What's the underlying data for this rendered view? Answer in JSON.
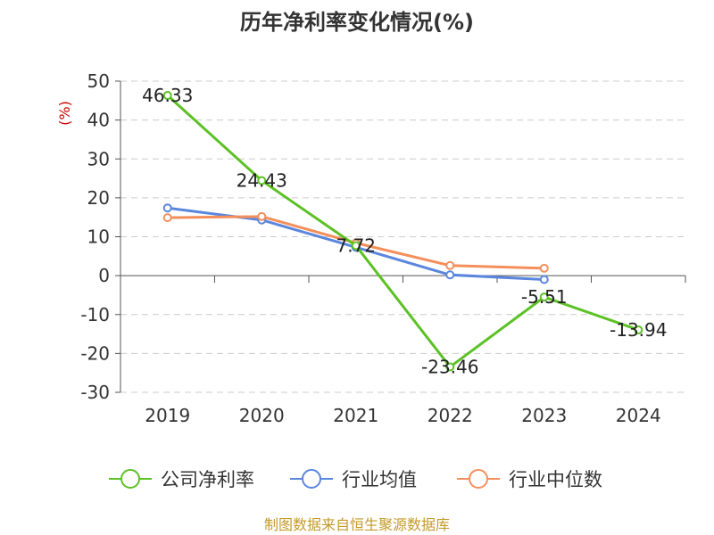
{
  "source_text": "制图数据来自恒生聚源数据库",
  "chart_data": {
    "type": "line",
    "title": "历年净利率变化情况(%)",
    "ylabel": "(%)",
    "xlabel": "",
    "categories": [
      "2019",
      "2020",
      "2021",
      "2022",
      "2023",
      "2024"
    ],
    "ylim": [
      -30,
      50
    ],
    "yticks": [
      "50",
      "40",
      "30",
      "20",
      "10",
      "0",
      "-10",
      "-20",
      "-30"
    ],
    "grid": true,
    "legend_position": "bottom",
    "series": [
      {
        "name": "公司净利率",
        "color": "#5cc124",
        "values": [
          46.33,
          24.43,
          7.72,
          -23.46,
          -5.51,
          -13.94
        ],
        "labels": [
          "46.33",
          "24.43",
          "7.72",
          "-23.46",
          "-5.51",
          "-13.94"
        ]
      },
      {
        "name": "行业均值",
        "color": "#5b86dd",
        "values": [
          17.4,
          14.3,
          7.3,
          0.2,
          -1.0,
          null
        ]
      },
      {
        "name": "行业中位数",
        "color": "#f48f5c",
        "values": [
          14.9,
          15.2,
          8.4,
          2.6,
          1.9,
          null
        ]
      }
    ]
  }
}
